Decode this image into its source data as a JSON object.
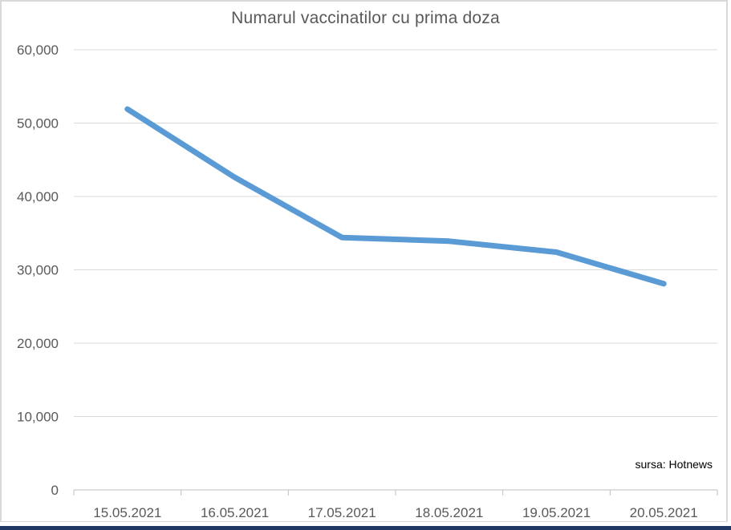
{
  "chart_data": {
    "type": "line",
    "title": "Numarul vaccinatilor cu prima doza",
    "categories": [
      "15.05.2021",
      "16.05.2021",
      "17.05.2021",
      "18.05.2021",
      "19.05.2021",
      "20.05.2021"
    ],
    "values": [
      51900,
      42600,
      34400,
      33900,
      32400,
      28100
    ],
    "xlabel": "",
    "ylabel": "",
    "ylim": [
      0,
      60000
    ],
    "yticks": {
      "values": [
        0,
        10000,
        20000,
        30000,
        40000,
        50000,
        60000
      ],
      "labels": [
        "0",
        "10,000",
        "20,000",
        "30,000",
        "40,000",
        "50,000",
        "60,000"
      ]
    },
    "grid": "horizontal-only",
    "legend": "none",
    "source": "sursa: Hotnews",
    "colors": {
      "line": "#5B9BD5",
      "gridline": "#D9D9D9",
      "axis": "#BFBFBF",
      "title_text": "#595959",
      "tick_text": "#595959",
      "source_text": "#000000",
      "footer_bar": "#1F3864",
      "frame_border": "#D9D9D9",
      "background": "#FFFFFF"
    }
  }
}
